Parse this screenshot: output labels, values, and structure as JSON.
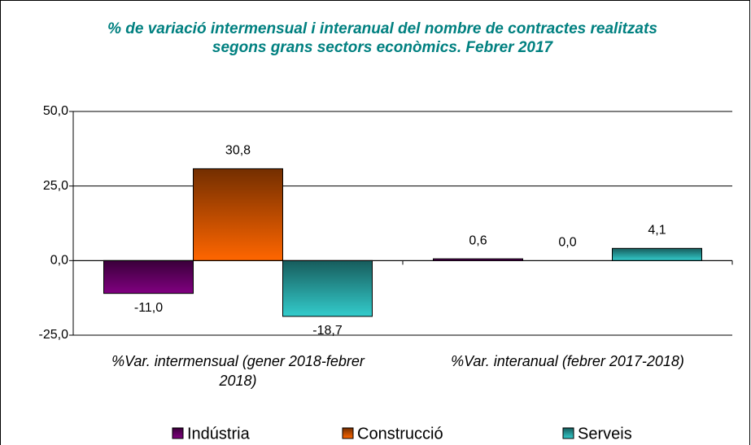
{
  "chart_data": {
    "type": "bar",
    "title": "% de variació intermensual i interanual del nombre de contractes realitzats segons grans sectors econòmics. Febrer 2017",
    "categories": [
      "%Var. intermensual (gener 2018-febrer 2018)",
      "%Var. interanual (febrer 2017-2018)"
    ],
    "series": [
      {
        "name": "Indústria",
        "color": "#800080",
        "values": [
          -11.0,
          0.6
        ],
        "value_labels": [
          "-11,0",
          "0,6"
        ]
      },
      {
        "name": "Construcció",
        "color": "#ff6600",
        "values": [
          30.8,
          0.0
        ],
        "value_labels": [
          "30,8",
          "0,0"
        ]
      },
      {
        "name": "Serveis",
        "color": "#33cccc",
        "values": [
          -18.7,
          4.1
        ],
        "value_labels": [
          "-18,7",
          "4,1"
        ]
      }
    ],
    "ylim": [
      -25,
      50
    ],
    "yticks": [
      {
        "value": -25,
        "label": "-25,0"
      },
      {
        "value": 0,
        "label": "0,0"
      },
      {
        "value": 25,
        "label": "25,0"
      },
      {
        "value": 50,
        "label": "50,0"
      }
    ],
    "grid": true,
    "legend": "bottom"
  }
}
